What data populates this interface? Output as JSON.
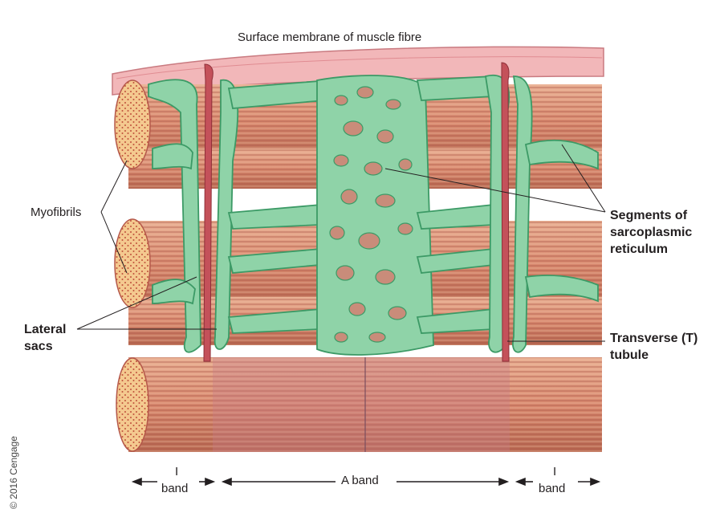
{
  "title": "Surface membrane of muscle fibre",
  "labels": {
    "myofibrils": "Myofibrils",
    "lateral_sacs_1": "Lateral",
    "lateral_sacs_2": "sacs",
    "sr_1": "Segments of",
    "sr_2": "sarcoplasmic",
    "sr_3": "reticulum",
    "tt_1": "Transverse (T)",
    "tt_2": "tubule"
  },
  "bands": {
    "i_band_left_1": "I",
    "i_band_left_2": "band",
    "a_band": "A band",
    "i_band_right_1": "I",
    "i_band_right_2": "band"
  },
  "copyright": "© 2016 Cengage",
  "colors": {
    "membrane": "#f2b7b9",
    "muscle": "#d98a6f",
    "muscle_dark": "#b5584a",
    "sr_green": "#8fd3a8",
    "sr_dark": "#3c9a66",
    "t_tubule": "#c4515a"
  }
}
